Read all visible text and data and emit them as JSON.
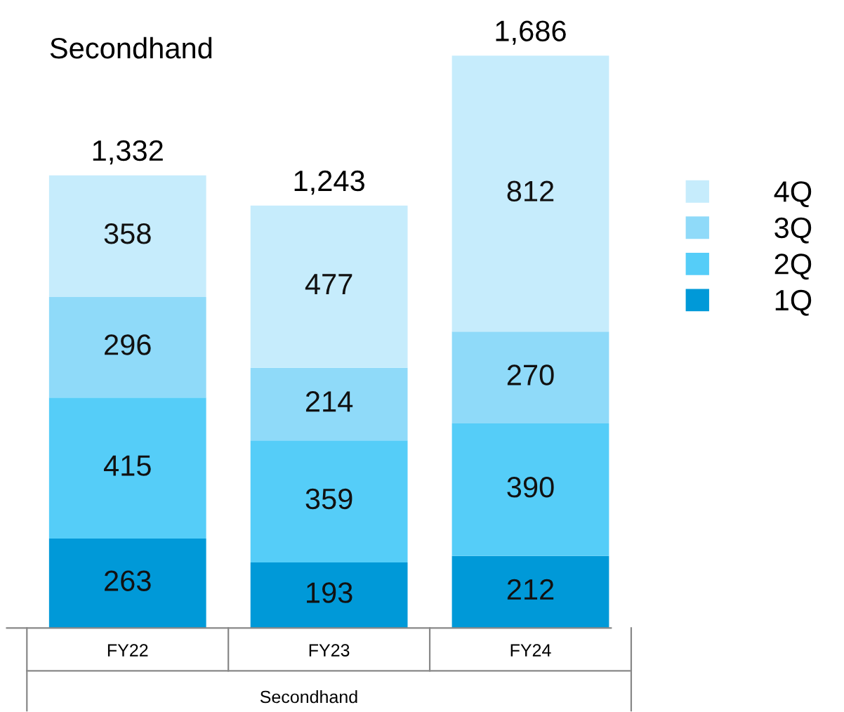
{
  "chart_data": {
    "type": "bar",
    "title": "Secondhand",
    "stacked": true,
    "categories": [
      "FY22",
      "FY23",
      "FY24"
    ],
    "series": [
      {
        "name": "1Q",
        "color": "#0099d8",
        "values": [
          263,
          193,
          212
        ]
      },
      {
        "name": "2Q",
        "color": "#55cdf8",
        "values": [
          415,
          359,
          390
        ]
      },
      {
        "name": "3Q",
        "color": "#8fdaf9",
        "values": [
          296,
          214,
          270
        ]
      },
      {
        "name": "4Q",
        "color": "#c6ecfc",
        "values": [
          358,
          477,
          812
        ]
      }
    ],
    "data_labels": true,
    "totals": [
      "1,332",
      "1,243",
      "1,686"
    ],
    "legend": "right",
    "grid": false,
    "annotations": [
      "Secondhand"
    ]
  }
}
